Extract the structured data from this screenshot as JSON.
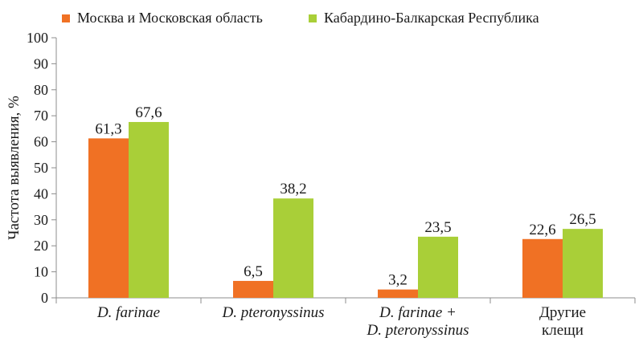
{
  "chart_data": {
    "type": "bar",
    "title": "",
    "xlabel": "",
    "ylabel": "Частота выявления, %",
    "ylim": [
      0,
      100
    ],
    "yticks": [
      0,
      10,
      20,
      30,
      40,
      50,
      60,
      70,
      80,
      90,
      100
    ],
    "grid": false,
    "legend_position": "top",
    "categories": [
      {
        "lines": [
          "D. farinae"
        ],
        "italic": true
      },
      {
        "lines": [
          "D. pteronyssinus"
        ],
        "italic": true
      },
      {
        "lines": [
          "D. farinae +",
          "D. pteronyssinus"
        ],
        "italic": true
      },
      {
        "lines": [
          "Другие",
          "клещи"
        ],
        "italic": false
      }
    ],
    "series": [
      {
        "name": "Москва и Московская область",
        "color": "#f07124",
        "values": [
          61.3,
          6.5,
          3.2,
          22.6
        ],
        "labels": [
          "61,3",
          "6,5",
          "3,2",
          "22,6"
        ]
      },
      {
        "name": "Кабардино-Балкарская Республика",
        "color": "#a9cf38",
        "values": [
          67.6,
          38.2,
          23.5,
          26.5
        ],
        "labels": [
          "67,6",
          "38,2",
          "23,5",
          "26,5"
        ]
      }
    ],
    "axis_color": "#8c8c8c"
  }
}
